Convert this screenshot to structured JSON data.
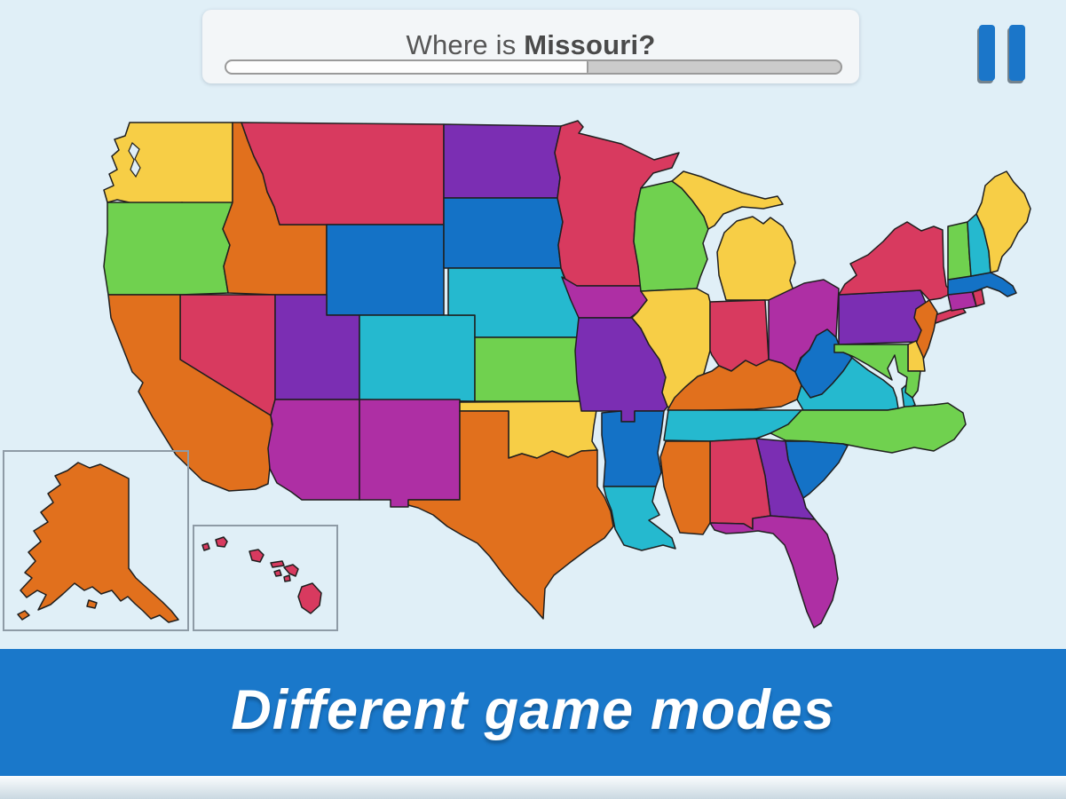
{
  "question": {
    "prefix": "Where is ",
    "subject": "Missouri?",
    "progress_percent": 59
  },
  "pause": {
    "label": "pause"
  },
  "banner": {
    "text": "Different game modes"
  },
  "colors": {
    "background": "#e0eff7",
    "card": "#f3f6f8",
    "question_text": "#565656",
    "progress_track": "#cbcbcb",
    "progress_fill": "#fdfdfd",
    "pause_blue": "#1b76c9",
    "banner_blue": "#1a78ca"
  },
  "map": {
    "stroke": "#1f1f1f",
    "inset_border": "#8e9ba6",
    "water": "#e0eff7",
    "palette": {
      "yellow": "#f7ce46",
      "green": "#70d14f",
      "orange": "#e1701d",
      "red": "#d83a5f",
      "blue": "#1472c6",
      "purple": "#7b2eb3",
      "magenta": "#ae2fa4",
      "teal": "#25b9cf"
    },
    "states": {
      "WA": "yellow",
      "OR": "green",
      "CA": "orange",
      "NV": "red",
      "ID": "orange",
      "MT": "red",
      "WY": "blue",
      "UT": "purple",
      "CO": "teal",
      "AZ": "magenta",
      "NM": "magenta",
      "ND": "purple",
      "SD": "blue",
      "NE": "teal",
      "KS": "green",
      "OK": "yellow",
      "TX": "orange",
      "MN": "red",
      "IA": "magenta",
      "MO": "purple",
      "AR": "blue",
      "LA": "teal",
      "WI": "green",
      "MIUP": "yellow",
      "MI": "yellow",
      "IL": "yellow",
      "IN": "red",
      "OH": "magenta",
      "KY": "orange",
      "TN": "teal",
      "WV": "blue",
      "VA": "teal",
      "VAS": "teal",
      "NC": "green",
      "SC": "blue",
      "GA": "purple",
      "AL": "red",
      "MS": "orange",
      "FL": "magenta",
      "PA": "purple",
      "NY": "red",
      "LI": "red",
      "NJ": "orange",
      "DE": "yellow",
      "MD": "green",
      "CT": "magenta",
      "RI": "red",
      "MA": "blue",
      "VT": "green",
      "NH": "teal",
      "ME": "yellow",
      "AK": "orange",
      "HI1": "red",
      "HI2": "red",
      "HI3": "red",
      "HI4": "red",
      "HI5": "red",
      "HI6": "red",
      "HI7": "red",
      "HI8": "red"
    }
  }
}
